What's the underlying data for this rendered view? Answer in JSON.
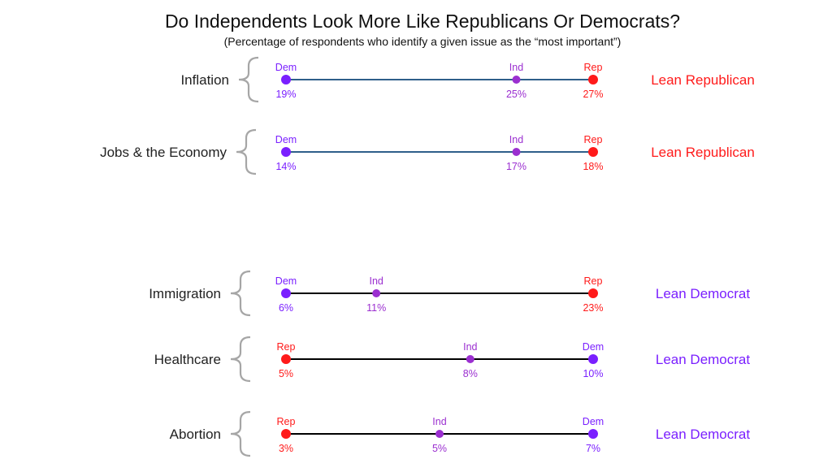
{
  "chart_data": {
    "type": "dot-range",
    "title": "Do Independents Look More Like Republicans Or Democrats?",
    "subtitle": "(Percentage of respondents who identify a given issue as the “most important”)",
    "colors": {
      "Dem": "#7a1fff",
      "Ind": "#9b2fd0",
      "Rep": "#ff1a1a",
      "line_republican": "#2f5f8a",
      "line_democrat": "#000000"
    },
    "series_names": [
      "Dem",
      "Ind",
      "Rep"
    ],
    "issues": [
      {
        "name": "Inflation",
        "values": {
          "Dem": 19,
          "Ind": 25,
          "Rep": 27
        },
        "labels": {
          "Dem": "19%",
          "Ind": "25%",
          "Rep": "27%"
        },
        "verdict": "Lean Republican"
      },
      {
        "name": "Jobs & the Economy",
        "values": {
          "Dem": 14,
          "Ind": 17,
          "Rep": 18
        },
        "labels": {
          "Dem": "14%",
          "Ind": "17%",
          "Rep": "18%"
        },
        "verdict": "Lean Republican"
      },
      {
        "name": "Immigration",
        "values": {
          "Dem": 6,
          "Ind": 11,
          "Rep": 23
        },
        "labels": {
          "Dem": "6%",
          "Ind": "11%",
          "Rep": "23%"
        },
        "verdict": "Lean Democrat"
      },
      {
        "name": "Healthcare",
        "values": {
          "Rep": 5,
          "Ind": 8,
          "Dem": 10
        },
        "labels": {
          "Rep": "5%",
          "Ind": "8%",
          "Dem": "10%"
        },
        "verdict": "Lean Democrat"
      },
      {
        "name": "Abortion",
        "values": {
          "Rep": 3,
          "Ind": 5,
          "Dem": 7
        },
        "labels": {
          "Rep": "3%",
          "Ind": "5%",
          "Dem": "7%"
        },
        "verdict": "Lean Democrat"
      }
    ]
  }
}
